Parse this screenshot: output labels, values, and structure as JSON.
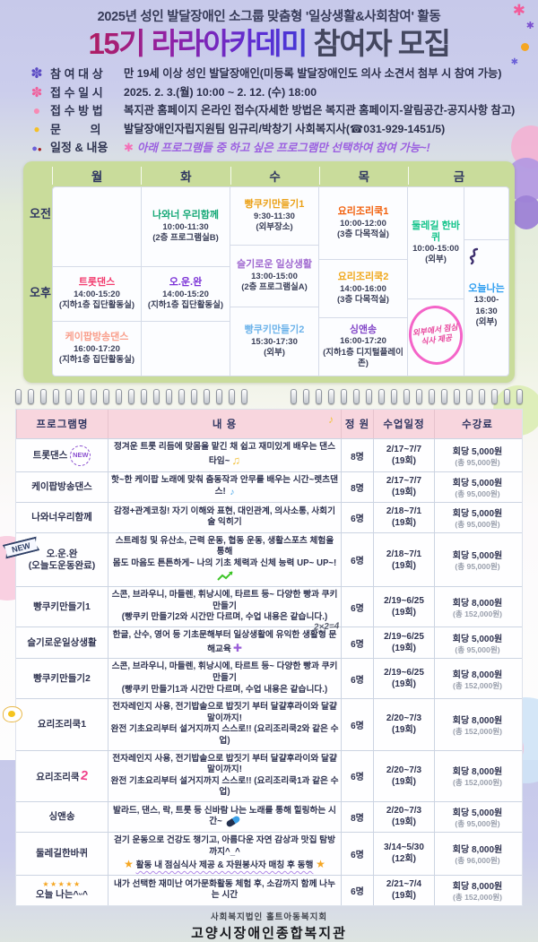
{
  "header": {
    "subtitle": "2025년 성인 발달장애인 소그룹 맞춤형 '일상생활&사회참여' 활동",
    "title_main": "15기 라라아카데미",
    "title_tail": " 참여자 모집"
  },
  "icons": {
    "flower": "✽",
    "dot": "●",
    "sparkle": "✱",
    "music_note": "♫",
    "music_note_small": "♪",
    "plus": "✚",
    "star": "★",
    "stars5": "★★★★★"
  },
  "info": {
    "rows": [
      {
        "label": "참 여 대 상",
        "value": "만 19세 이상 성인 발달장애인(미등록 발달장애인도 의사 소견서 첨부 시 참여 가능)"
      },
      {
        "label": "접 수 일 시",
        "value": "2025. 2. 3.(월) 10:00 ~ 2. 12. (수) 18:00"
      },
      {
        "label": "접 수 방 법",
        "value": "복지관 홈페이지 온라인 접수(자세한 방법은 복지관 홈페이지-알림공간-공지사항 참고)"
      },
      {
        "label": "문         의",
        "value": "발달장애인자립지원팀 임규리/박창기 사회복지사(☎031-929-1451/5)"
      },
      {
        "label": "일정 & 내용",
        "value": "아래 프로그램들 중 하고 싶은 프로그램만 선택하여 참여 가능~!"
      }
    ]
  },
  "timetable": {
    "period_am": "오전",
    "period_pm": "오후",
    "days": [
      "월",
      "화",
      "수",
      "목",
      "금"
    ],
    "cells": {
      "tue_am": {
        "title": "나와너 우리함께",
        "time": "10:00-11:30",
        "place": "(2층 프로그램실B)"
      },
      "wed_am": {
        "title": "빵쿠키만들기1",
        "time": "9:30-11:30",
        "place": "(외부장소)"
      },
      "thu_am": {
        "title": "요리조리쿡1",
        "time": "10:00-12:00",
        "place": "(3층 다목적실)"
      },
      "fri_trail": {
        "title": "둘레길 한바퀴",
        "time": "10:00-15:00",
        "place": "(외부)"
      },
      "wed_mid": {
        "title": "슬기로운 일상생활",
        "time": "13:00-15:00",
        "place": "(2층 프로그램실A)"
      },
      "mon_pm1": {
        "title": "트롯댄스",
        "time": "14:00-15:20",
        "place": "(지하1층 집단활동실)"
      },
      "tue_pm": {
        "title": "오.운.완",
        "time": "14:00-15:20",
        "place": "(지하1층 집단활동실)"
      },
      "wed_pm": {
        "title": "빵쿠키만들기2",
        "time": "15:30-17:30",
        "place": "(외부)"
      },
      "thu_pm1": {
        "title": "요리조리쿡2",
        "time": "14:00-16:00",
        "place": "(3층 다목적실)"
      },
      "mon_pm2": {
        "title": "케이팝방송댄스",
        "time": "16:00-17:20",
        "place": "(지하1층 집단활동실)"
      },
      "thu_pm2": {
        "title": "싱앤송",
        "time": "16:00-17:20",
        "place": "(지하1층 디지털플레이존)"
      },
      "fri_today": {
        "title": "오늘나는",
        "time": "13:00-16:30",
        "place": "(외부)"
      }
    },
    "fri_note": "외부에서 점심식사 제공"
  },
  "programs": {
    "headers": {
      "name": "프로그램명",
      "content": "내 용",
      "capacity": "정 원",
      "schedule": "수업일정",
      "fee": "수강료"
    },
    "rows": [
      {
        "name": "트롯댄스",
        "badge": "NEW",
        "content": "정겨운 트롯 리듬에 맞몸을 맡긴 채 쉽고 재미있게 배우는 댄스타임~",
        "capacity": "8명",
        "dates": "2/17~7/7",
        "sessions": "(19회)",
        "fee": "회당 5,000원",
        "fee_total": "(총 95,000원)"
      },
      {
        "name": "케이팝방송댄스",
        "content": "핫~한 케이팝 노래에 맞춰 춤동작과 안무를 배우는 시간~렛츠댄스!",
        "capacity": "8명",
        "dates": "2/17~7/7",
        "sessions": "(19회)",
        "fee": "회당 5,000원",
        "fee_total": "(총 95,000원)"
      },
      {
        "name": "나와너우리함께",
        "content": "감정+관계코칭! 자기 이해와 표현, 대인관계, 의사소통, 사회기술 익히기",
        "capacity": "6명",
        "dates": "2/18~7/1",
        "sessions": "(19회)",
        "fee": "회당 5,000원",
        "fee_total": "(총 95,000원)"
      },
      {
        "name": "오.운.완",
        "name2": "(오늘도운동완료)",
        "badge": "NEW",
        "content": "스트레칭 및 유산소, 근력 운동, 협동 운동, 생활스포츠 체험을 통해",
        "content2": "몸도 마음도 튼튼하게~ 나의 기초 체력과 신체 능력 UP~ UP~!",
        "capacity": "6명",
        "dates": "2/18~7/1",
        "sessions": "(19회)",
        "fee": "회당 5,000원",
        "fee_total": "(총 95,000원)"
      },
      {
        "name": "빵쿠키만들기1",
        "content": "스콘, 브라우니, 마들렌, 휘낭시에, 타르트 등~ 다양한 빵과 쿠키 만들기",
        "content2": "(빵쿠키 만들기2와 시간만 다르며, 수업 내용은 같습니다.)",
        "capacity": "6명",
        "dates": "2/19~6/25",
        "sessions": "(19회)",
        "fee": "회당 8,000원",
        "fee_total": "(총 152,000원)"
      },
      {
        "name": "슬기로운일상생활",
        "content": "한글, 산수, 영어 등 기초문해부터 일상생활에 유익한 생활형 문해교육",
        "annotation": "2×2=4",
        "capacity": "6명",
        "dates": "2/19~6/25",
        "sessions": "(19회)",
        "fee": "회당 5,000원",
        "fee_total": "(총 95,000원)"
      },
      {
        "name": "빵쿠키만들기2",
        "content": "스콘, 브라우니, 마들렌, 휘낭시에, 타르트 등~ 다양한 빵과 쿠키 만들기",
        "content2": "(빵쿠키 만들기1과 시간만 다르며, 수업 내용은 같습니다.)",
        "capacity": "6명",
        "dates": "2/19~6/25",
        "sessions": "(19회)",
        "fee": "회당 8,000원",
        "fee_total": "(총 152,000원)"
      },
      {
        "name": "요리조리쿡1",
        "content": "전자레인지 사용, 전기밥솥으로 밥짓기 부터 달걀후라이와 달걀말이까지!",
        "content2": "완전 기초요리부터 설거지까지 스스로!! (요리조리쿡2와 같은 수업)",
        "capacity": "6명",
        "dates": "2/20~7/3",
        "sessions": "(19회)",
        "fee": "회당 8,000원",
        "fee_total": "(총 152,000원)"
      },
      {
        "name": "요리조리쿡",
        "name_suffix": "2",
        "content": "전자레인지 사용, 전기밥솥으로 밥짓기 부터 달걀후라이와 달걀말이까지!",
        "content2": "완전 기초요리부터 설거지까지 스스로!! (요리조리쿡1과 같은 수업)",
        "capacity": "6명",
        "dates": "2/20~7/3",
        "sessions": "(19회)",
        "fee": "회당 8,000원",
        "fee_total": "(총 152,000원)"
      },
      {
        "name": "싱앤송",
        "content": "발라드, 댄스, 락, 트롯 등  신바람 나는 노래를 통해 힐링하는 시간~",
        "capacity": "8명",
        "dates": "2/20~7/3",
        "sessions": "(19회)",
        "fee": "회당 5,000원",
        "fee_total": "(총 95,000원)"
      },
      {
        "name": "둘레길한바퀴",
        "content": "걷기 운동으로 건강도 챙기고, 아름다운 자연 감상과 맛집 탐방까지^_^",
        "content2": "활동 내 점심식사 제공 & 자원봉사자 매칭 후 동행",
        "capacity": "6명",
        "dates": "3/14~5/30",
        "sessions": "(12회)",
        "fee": "회당 8,000원",
        "fee_total": "(총 96,000원)"
      },
      {
        "name": "오늘 나는^ᵕ^",
        "stars": "★★★★★",
        "content": "내가 선택한 재미난 여가문화활동 체험 후, 소감까지 함께 나누는 시간",
        "capacity": "6명",
        "dates": "2/21~7/4",
        "sessions": "(19회)",
        "fee": "회당 8,000원",
        "fee_total": "(총 152,000원)"
      }
    ]
  },
  "footer": {
    "org": "사회복지법인 홀트아동복지회",
    "center": "고양시장애인종합복지관"
  }
}
